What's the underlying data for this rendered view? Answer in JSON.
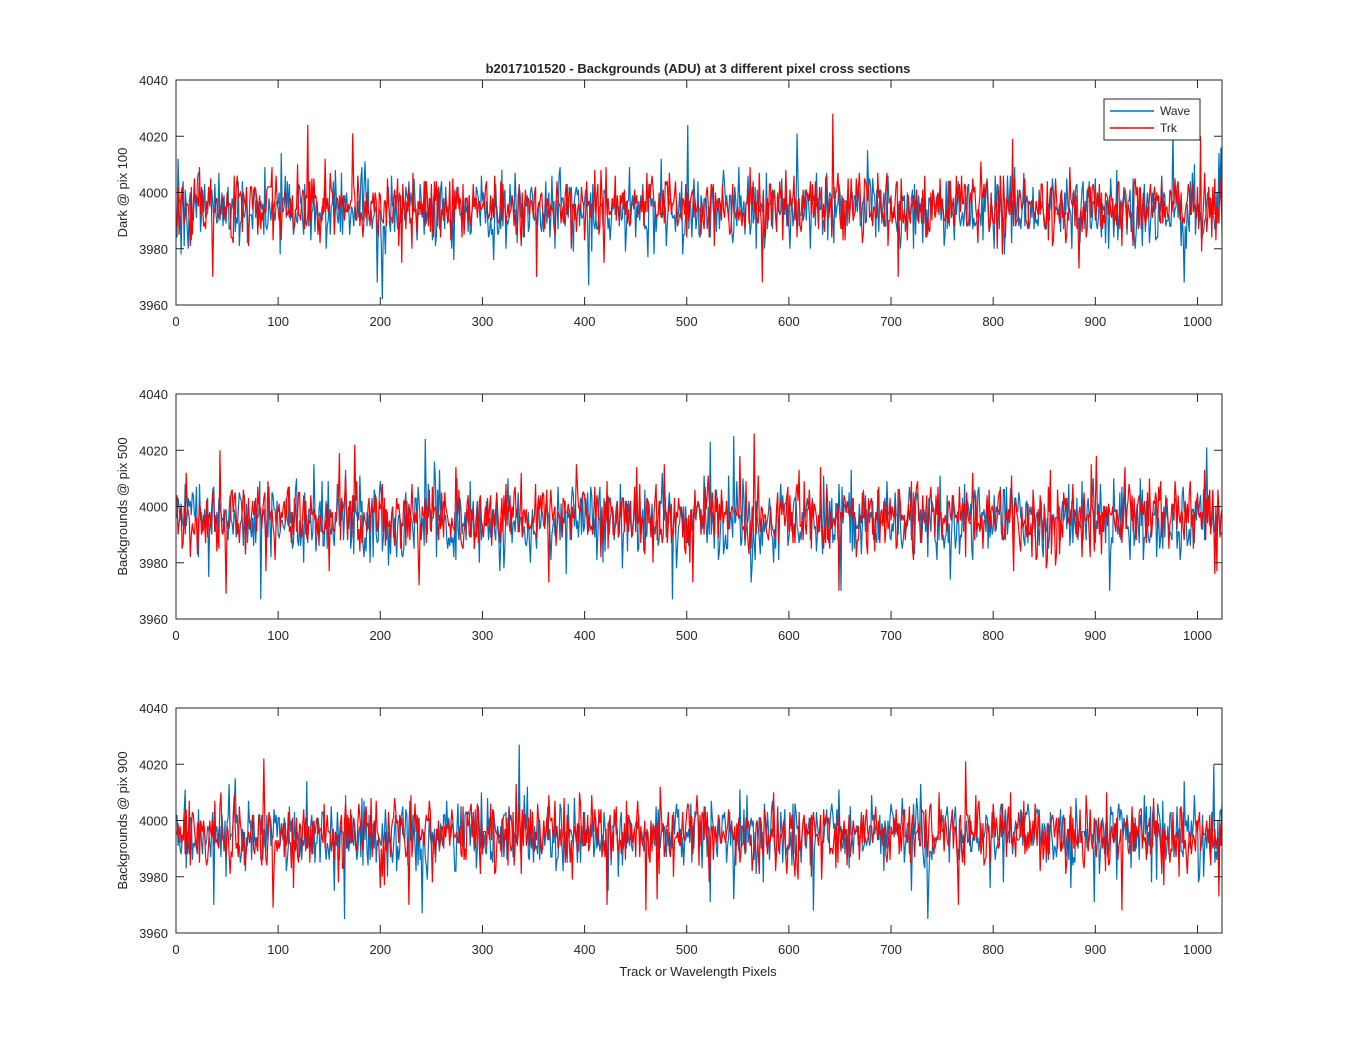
{
  "figure": {
    "title": "b2017101520 - Backgrounds (ADU) at 3 different pixel cross sections",
    "xlabel": "Track or Wavelength Pixels"
  },
  "colors": {
    "wave": "#0072BD",
    "trk": "#FF0000",
    "axes": "#262626"
  },
  "chart_data": [
    {
      "type": "line",
      "ylabel": "Dark @ pix 100",
      "xlim": [
        0,
        1024
      ],
      "ylim": [
        3960,
        4040
      ],
      "xticks": [
        "0",
        "100",
        "200",
        "300",
        "400",
        "500",
        "600",
        "700",
        "800",
        "900",
        "1000"
      ],
      "yticks": [
        "3960",
        "3980",
        "4000",
        "4020",
        "4040"
      ],
      "legend": {
        "placement": "top-right",
        "entries": [
          "Wave",
          "Trk"
        ]
      },
      "series": [
        {
          "name": "Wave",
          "mean": 3994,
          "noise": 6.5,
          "n": 1024,
          "seed": 101,
          "min": 3962,
          "max": 4024,
          "spikes": [
            [
              1,
              4012
            ],
            [
              4,
              3978
            ],
            [
              102,
              4014
            ],
            [
              196,
              3968
            ],
            [
              201,
              3962
            ],
            [
              403,
              3967
            ],
            [
              500,
              4024
            ],
            [
              607,
              4021
            ],
            [
              986,
              3968
            ],
            [
              975,
              4022
            ],
            [
              1022,
              4016
            ]
          ]
        },
        {
          "name": "Trk",
          "mean": 3995,
          "noise": 6.0,
          "n": 1024,
          "seed": 202,
          "min": 3968,
          "max": 4028,
          "spikes": [
            [
              35,
              3970
            ],
            [
              128,
              4024
            ],
            [
              172,
              4021
            ],
            [
              220,
              3975
            ],
            [
              352,
              3970
            ],
            [
              573,
              3968
            ],
            [
              642,
              4028
            ],
            [
              706,
              3970
            ],
            [
              870,
              3982
            ],
            [
              1002,
              4020
            ]
          ]
        }
      ]
    },
    {
      "type": "line",
      "ylabel": "Backgrounds @ pix 500",
      "xlim": [
        0,
        1024
      ],
      "ylim": [
        3960,
        4040
      ],
      "xticks": [
        "0",
        "100",
        "200",
        "300",
        "400",
        "500",
        "600",
        "700",
        "800",
        "900",
        "1000"
      ],
      "yticks": [
        "3960",
        "3980",
        "4000",
        "4020",
        "4040"
      ],
      "series": [
        {
          "name": "Wave",
          "mean": 3995,
          "noise": 7.0,
          "n": 1024,
          "seed": 303,
          "min": 3967,
          "max": 4025,
          "spikes": [
            [
              82,
              3967
            ],
            [
              243,
              4024
            ],
            [
              485,
              3967
            ],
            [
              522,
              4023
            ],
            [
              545,
              4025
            ],
            [
              562,
              3973
            ],
            [
              650,
              3970
            ],
            [
              660,
              4013
            ],
            [
              757,
              3974
            ],
            [
              913,
              3970
            ],
            [
              1008,
              4021
            ]
          ]
        },
        {
          "name": "Trk",
          "mean": 3996,
          "noise": 6.5,
          "n": 1024,
          "seed": 404,
          "min": 3969,
          "max": 4026,
          "spikes": [
            [
              42,
              4020
            ],
            [
              48,
              3969
            ],
            [
              174,
              4022
            ],
            [
              237,
              3972
            ],
            [
              364,
              3973
            ],
            [
              505,
              3973
            ],
            [
              551,
              4018
            ],
            [
              565,
              4026
            ],
            [
              648,
              3970
            ],
            [
              837,
              3982
            ],
            [
              1016,
              3976
            ]
          ]
        }
      ]
    },
    {
      "type": "line",
      "ylabel": "Backgrounds @ pix 900",
      "xlim": [
        0,
        1024
      ],
      "ylim": [
        3960,
        4040
      ],
      "xticks": [
        "0",
        "100",
        "200",
        "300",
        "400",
        "500",
        "600",
        "700",
        "800",
        "900",
        "1000"
      ],
      "yticks": [
        "3960",
        "3980",
        "4000",
        "4020",
        "4040"
      ],
      "series": [
        {
          "name": "Wave",
          "mean": 3995,
          "noise": 6.5,
          "n": 1024,
          "seed": 505,
          "min": 3965,
          "max": 4027,
          "spikes": [
            [
              36,
              3970
            ],
            [
              164,
              3965
            ],
            [
              240,
              3967
            ],
            [
              335,
              4027
            ],
            [
              422,
              3975
            ],
            [
              522,
              3971
            ],
            [
              623,
              3968
            ],
            [
              898,
              3971
            ],
            [
              1008,
              3990
            ],
            [
              1015,
              4020
            ]
          ]
        },
        {
          "name": "Trk",
          "mean": 3995,
          "noise": 6.0,
          "n": 1024,
          "seed": 606,
          "min": 3968,
          "max": 4022,
          "spikes": [
            [
              85,
              4022
            ],
            [
              94,
              3969
            ],
            [
              227,
              3970
            ],
            [
              421,
              3970
            ],
            [
              459,
              3968
            ],
            [
              470,
              3972
            ],
            [
              772,
              4021
            ],
            [
              765,
              3970
            ],
            [
              925,
              3968
            ],
            [
              1020,
              3973
            ]
          ]
        }
      ]
    }
  ]
}
